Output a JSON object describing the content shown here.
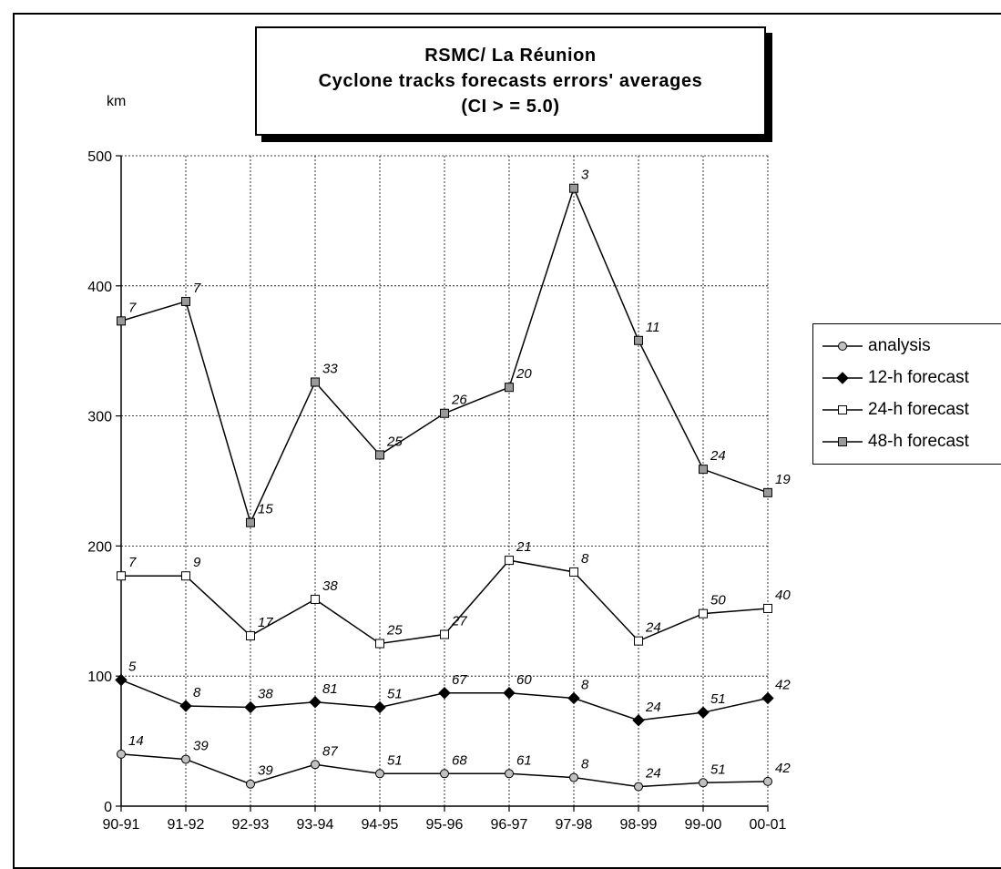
{
  "title": {
    "line1": "RSMC/ La Réunion",
    "line2": "Cyclone tracks forecasts errors' averages",
    "line3": "(CI > = 5.0)"
  },
  "chart_data": {
    "type": "line",
    "ylabel": "km",
    "ylim": [
      0,
      500
    ],
    "yticks": [
      0,
      100,
      200,
      300,
      400,
      500
    ],
    "grid": true,
    "legend_position": "right",
    "categories": [
      "90-91",
      "91-92",
      "92-93",
      "93-94",
      "94-95",
      "95-96",
      "96-97",
      "97-98",
      "98-99",
      "99-00",
      "00-01"
    ],
    "series": [
      {
        "name": "analysis",
        "marker": "circle",
        "color": "#c0c0c0",
        "values": [
          40,
          36,
          17,
          32,
          25,
          25,
          25,
          22,
          15,
          18,
          19
        ],
        "labels": [
          "14",
          "39",
          "39",
          "87",
          "51",
          "68",
          "61",
          "8",
          "24",
          "51",
          "42"
        ]
      },
      {
        "name": "12-h forecast",
        "marker": "diamond",
        "color": "#000000",
        "values": [
          97,
          77,
          76,
          80,
          76,
          87,
          87,
          83,
          66,
          72,
          83
        ],
        "labels": [
          "5",
          "8",
          "38",
          "81",
          "51",
          "67",
          "60",
          "8",
          "24",
          "51",
          "42"
        ]
      },
      {
        "name": "24-h forecast",
        "marker": "square-open",
        "color": "#ffffff",
        "values": [
          177,
          177,
          131,
          159,
          125,
          132,
          189,
          180,
          127,
          148,
          152
        ],
        "labels": [
          "7",
          "9",
          "17",
          "38",
          "25",
          "27",
          "21",
          "8",
          "24",
          "50",
          "40"
        ]
      },
      {
        "name": "48-h forecast",
        "marker": "square-filled",
        "color": "#999999",
        "values": [
          373,
          388,
          218,
          326,
          270,
          302,
          322,
          475,
          358,
          259,
          241
        ],
        "labels": [
          "7",
          "7",
          "15",
          "33",
          "25",
          "26",
          "20",
          "3",
          "11",
          "24",
          "19"
        ]
      }
    ]
  }
}
